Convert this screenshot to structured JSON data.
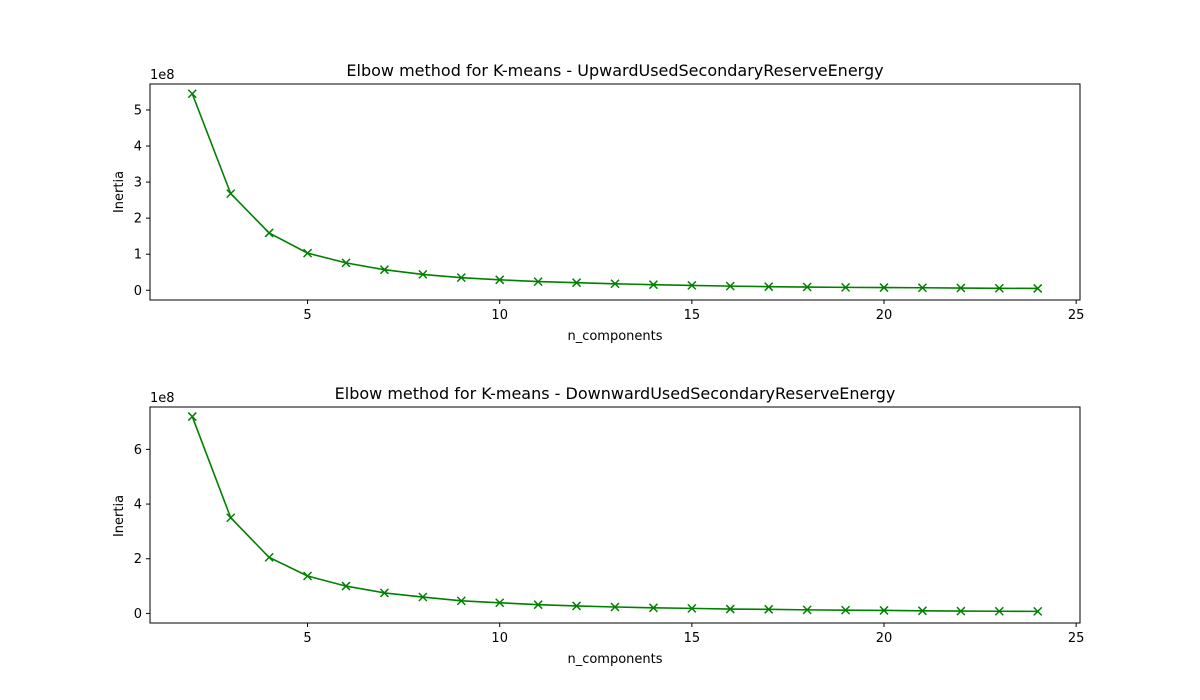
{
  "chart_data": [
    {
      "type": "line",
      "title": "Elbow method for K-means - UpwardUsedSecondaryReserveEnergy",
      "xlabel": "n_components",
      "ylabel": "Inertia",
      "y_offset_text": "1e8",
      "xlim": [
        0.9,
        25.1
      ],
      "ylim": [
        -0.27,
        5.72
      ],
      "xticks": [
        5,
        10,
        15,
        20,
        25
      ],
      "yticks": [
        0,
        1,
        2,
        3,
        4,
        5
      ],
      "grid": false,
      "color": "#008000",
      "marker": "x",
      "series": [
        {
          "x": [
            2,
            3,
            4,
            5,
            6,
            7,
            8,
            9,
            10,
            11,
            12,
            13,
            14,
            15,
            16,
            17,
            18,
            19,
            20,
            21,
            22,
            23,
            24
          ],
          "y": [
            5.45,
            2.68,
            1.59,
            1.03,
            0.76,
            0.57,
            0.44,
            0.35,
            0.29,
            0.24,
            0.21,
            0.18,
            0.155,
            0.135,
            0.115,
            0.1,
            0.09,
            0.08,
            0.075,
            0.07,
            0.062,
            0.055,
            0.05
          ]
        }
      ]
    },
    {
      "type": "line",
      "title": "Elbow method for K-means - DownwardUsedSecondaryReserveEnergy",
      "xlabel": "n_components",
      "ylabel": "Inertia",
      "y_offset_text": "1e8",
      "xlim": [
        0.9,
        25.1
      ],
      "ylim": [
        -0.35,
        7.55
      ],
      "xticks": [
        5,
        10,
        15,
        20,
        25
      ],
      "yticks": [
        0,
        2,
        4,
        6
      ],
      "grid": false,
      "color": "#008000",
      "marker": "x",
      "series": [
        {
          "x": [
            2,
            3,
            4,
            5,
            6,
            7,
            8,
            9,
            10,
            11,
            12,
            13,
            14,
            15,
            16,
            17,
            18,
            19,
            20,
            21,
            22,
            23,
            24
          ],
          "y": [
            7.2,
            3.5,
            2.05,
            1.37,
            1.0,
            0.75,
            0.6,
            0.46,
            0.39,
            0.32,
            0.275,
            0.235,
            0.205,
            0.185,
            0.16,
            0.15,
            0.13,
            0.12,
            0.11,
            0.095,
            0.085,
            0.08,
            0.075
          ]
        }
      ]
    }
  ]
}
